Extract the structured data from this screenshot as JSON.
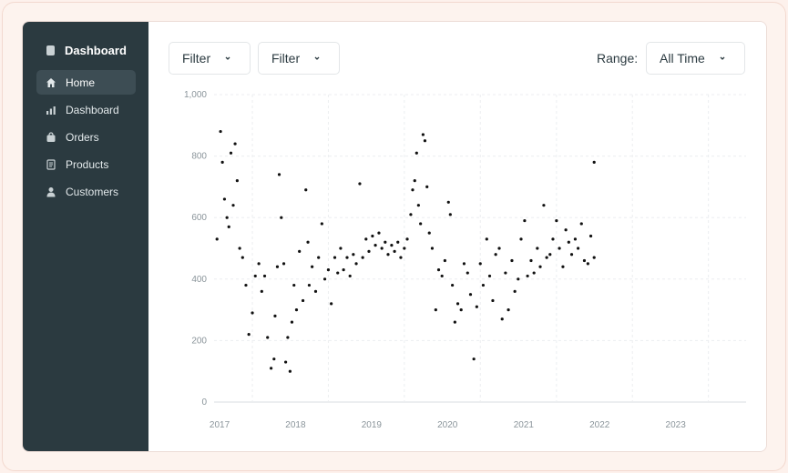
{
  "sidebar": {
    "brand": "Dashboard",
    "items": [
      {
        "label": "Home",
        "icon": "home-icon",
        "active": true
      },
      {
        "label": "Dashboard",
        "icon": "bar-chart-icon",
        "active": false
      },
      {
        "label": "Orders",
        "icon": "bag-icon",
        "active": false
      },
      {
        "label": "Products",
        "icon": "document-icon",
        "active": false
      },
      {
        "label": "Customers",
        "icon": "user-icon",
        "active": false
      }
    ]
  },
  "toolbar": {
    "filter1": "Filter",
    "filter2": "Filter",
    "range_label": "Range:",
    "range_value": "All Time"
  },
  "chart_data": {
    "type": "scatter",
    "title": "",
    "xlabel": "",
    "ylabel": "",
    "x_ticks": [
      "2017",
      "2018",
      "2019",
      "2020",
      "2021",
      "2022",
      "2023"
    ],
    "y_ticks": [
      "0",
      "200",
      "400",
      "600",
      "800",
      "1,000"
    ],
    "ylim": [
      0,
      1000
    ],
    "xlim": [
      "2016-07-01",
      "2023-07-01"
    ],
    "grid": true,
    "point_color": "#111111",
    "series": [
      {
        "points": [
          [
            "2016-07-15",
            530
          ],
          [
            "2016-08-01",
            880
          ],
          [
            "2016-08-10",
            780
          ],
          [
            "2016-08-20",
            660
          ],
          [
            "2016-09-01",
            600
          ],
          [
            "2016-09-10",
            570
          ],
          [
            "2016-09-20",
            810
          ],
          [
            "2016-10-01",
            640
          ],
          [
            "2016-10-10",
            840
          ],
          [
            "2016-10-20",
            720
          ],
          [
            "2016-11-01",
            500
          ],
          [
            "2016-11-15",
            470
          ],
          [
            "2016-12-01",
            380
          ],
          [
            "2016-12-15",
            220
          ],
          [
            "2017-01-01",
            290
          ],
          [
            "2017-01-15",
            410
          ],
          [
            "2017-02-01",
            450
          ],
          [
            "2017-02-15",
            360
          ],
          [
            "2017-03-01",
            410
          ],
          [
            "2017-03-15",
            210
          ],
          [
            "2017-04-01",
            110
          ],
          [
            "2017-04-15",
            140
          ],
          [
            "2017-04-20",
            280
          ],
          [
            "2017-05-01",
            440
          ],
          [
            "2017-05-10",
            740
          ],
          [
            "2017-05-20",
            600
          ],
          [
            "2017-06-01",
            450
          ],
          [
            "2017-06-10",
            130
          ],
          [
            "2017-06-20",
            210
          ],
          [
            "2017-07-01",
            100
          ],
          [
            "2017-07-10",
            260
          ],
          [
            "2017-07-20",
            380
          ],
          [
            "2017-08-01",
            300
          ],
          [
            "2017-08-15",
            490
          ],
          [
            "2017-09-01",
            330
          ],
          [
            "2017-09-15",
            690
          ],
          [
            "2017-09-25",
            520
          ],
          [
            "2017-10-01",
            380
          ],
          [
            "2017-10-15",
            440
          ],
          [
            "2017-11-01",
            360
          ],
          [
            "2017-11-15",
            470
          ],
          [
            "2017-12-01",
            580
          ],
          [
            "2017-12-15",
            400
          ],
          [
            "2018-01-01",
            430
          ],
          [
            "2018-01-15",
            320
          ],
          [
            "2018-02-01",
            470
          ],
          [
            "2018-02-15",
            420
          ],
          [
            "2018-03-01",
            500
          ],
          [
            "2018-03-15",
            430
          ],
          [
            "2018-04-01",
            470
          ],
          [
            "2018-04-15",
            410
          ],
          [
            "2018-05-01",
            480
          ],
          [
            "2018-05-15",
            450
          ],
          [
            "2018-06-01",
            710
          ],
          [
            "2018-06-15",
            470
          ],
          [
            "2018-07-01",
            530
          ],
          [
            "2018-07-15",
            490
          ],
          [
            "2018-08-01",
            540
          ],
          [
            "2018-08-15",
            510
          ],
          [
            "2018-09-01",
            550
          ],
          [
            "2018-09-15",
            500
          ],
          [
            "2018-10-01",
            520
          ],
          [
            "2018-10-15",
            480
          ],
          [
            "2018-11-01",
            510
          ],
          [
            "2018-11-15",
            490
          ],
          [
            "2018-12-01",
            520
          ],
          [
            "2018-12-15",
            470
          ],
          [
            "2019-01-01",
            500
          ],
          [
            "2019-01-15",
            530
          ],
          [
            "2019-02-01",
            610
          ],
          [
            "2019-02-10",
            690
          ],
          [
            "2019-02-20",
            720
          ],
          [
            "2019-03-01",
            810
          ],
          [
            "2019-03-10",
            640
          ],
          [
            "2019-03-20",
            580
          ],
          [
            "2019-04-01",
            870
          ],
          [
            "2019-04-10",
            850
          ],
          [
            "2019-04-20",
            700
          ],
          [
            "2019-05-01",
            550
          ],
          [
            "2019-05-15",
            500
          ],
          [
            "2019-06-01",
            300
          ],
          [
            "2019-06-15",
            430
          ],
          [
            "2019-07-01",
            410
          ],
          [
            "2019-07-15",
            460
          ],
          [
            "2019-08-01",
            650
          ],
          [
            "2019-08-10",
            610
          ],
          [
            "2019-08-20",
            380
          ],
          [
            "2019-09-01",
            260
          ],
          [
            "2019-09-15",
            320
          ],
          [
            "2019-10-01",
            300
          ],
          [
            "2019-10-15",
            450
          ],
          [
            "2019-11-01",
            420
          ],
          [
            "2019-11-15",
            350
          ],
          [
            "2019-12-01",
            140
          ],
          [
            "2019-12-15",
            310
          ],
          [
            "2020-01-01",
            450
          ],
          [
            "2020-01-15",
            380
          ],
          [
            "2020-02-01",
            530
          ],
          [
            "2020-02-15",
            410
          ],
          [
            "2020-03-01",
            330
          ],
          [
            "2020-03-15",
            480
          ],
          [
            "2020-04-01",
            500
          ],
          [
            "2020-04-15",
            270
          ],
          [
            "2020-05-01",
            420
          ],
          [
            "2020-05-15",
            300
          ],
          [
            "2020-06-01",
            460
          ],
          [
            "2020-06-15",
            360
          ],
          [
            "2020-07-01",
            400
          ],
          [
            "2020-07-15",
            530
          ],
          [
            "2020-08-01",
            590
          ],
          [
            "2020-08-15",
            410
          ],
          [
            "2020-09-01",
            460
          ],
          [
            "2020-09-15",
            420
          ],
          [
            "2020-10-01",
            500
          ],
          [
            "2020-10-15",
            440
          ],
          [
            "2020-11-01",
            640
          ],
          [
            "2020-11-15",
            470
          ],
          [
            "2020-12-01",
            480
          ],
          [
            "2020-12-15",
            530
          ],
          [
            "2021-01-01",
            590
          ],
          [
            "2021-01-15",
            500
          ],
          [
            "2021-02-01",
            440
          ],
          [
            "2021-02-15",
            560
          ],
          [
            "2021-03-01",
            520
          ],
          [
            "2021-03-15",
            480
          ],
          [
            "2021-04-01",
            530
          ],
          [
            "2021-04-15",
            500
          ],
          [
            "2021-05-01",
            580
          ],
          [
            "2021-05-15",
            460
          ],
          [
            "2021-06-01",
            450
          ],
          [
            "2021-06-15",
            540
          ],
          [
            "2021-07-01",
            470
          ],
          [
            "2021-07-01",
            780
          ]
        ]
      }
    ]
  }
}
